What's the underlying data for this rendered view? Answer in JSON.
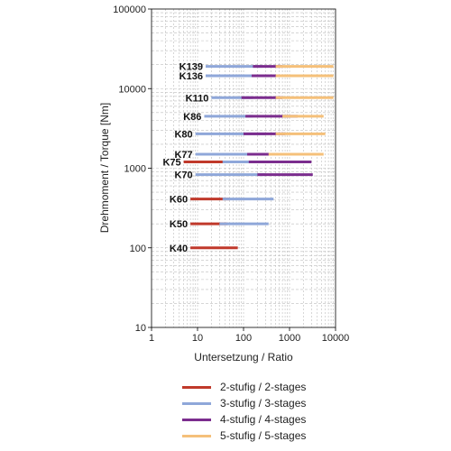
{
  "chart_data": {
    "type": "line",
    "xlabel": "Untersetzung / Ratio",
    "ylabel": "Drehmoment / Torque [Nm]",
    "x_scale": "log",
    "y_scale": "log",
    "xlim": [
      1,
      10000
    ],
    "ylim": [
      10,
      100000
    ],
    "x_ticks": [
      1,
      10,
      100,
      1000,
      10000
    ],
    "x_tick_labels": [
      "1",
      "10",
      "100",
      "1000",
      "10000"
    ],
    "y_ticks": [
      10,
      100,
      1000,
      10000,
      100000
    ],
    "y_tick_labels": [
      "10",
      "100",
      "1000",
      "10000",
      "100000"
    ],
    "grid": true,
    "legend_position": "bottom",
    "stage_colors": {
      "2-stage": "#c0392b",
      "3-stage": "#8fa7d9",
      "4-stage": "#7b2d8e",
      "5-stage": "#f5c07a"
    },
    "series": [
      {
        "name": "2-stufig / 2-stages",
        "stage": "2-stage"
      },
      {
        "name": "3-stufig / 3-stages",
        "stage": "3-stage"
      },
      {
        "name": "4-stufig / 4-stages",
        "stage": "4-stage"
      },
      {
        "name": "5-stufig / 5-stages",
        "stage": "5-stage"
      }
    ],
    "products": [
      {
        "label": "K139",
        "torque": 19000,
        "segments": [
          {
            "stage": "3-stage",
            "x": [
              15,
              260
            ]
          },
          {
            "stage": "4-stage",
            "x": [
              160,
              700
            ]
          },
          {
            "stage": "5-stage",
            "x": [
              500,
              9000
            ]
          }
        ]
      },
      {
        "label": "K136",
        "torque": 14500,
        "segments": [
          {
            "stage": "3-stage",
            "x": [
              15,
              230
            ]
          },
          {
            "stage": "4-stage",
            "x": [
              150,
              700
            ]
          },
          {
            "stage": "5-stage",
            "x": [
              500,
              9000
            ]
          }
        ]
      },
      {
        "label": "K110",
        "torque": 7700,
        "segments": [
          {
            "stage": "3-stage",
            "x": [
              20,
              160
            ]
          },
          {
            "stage": "4-stage",
            "x": [
              90,
              700
            ]
          },
          {
            "stage": "5-stage",
            "x": [
              500,
              9000
            ]
          }
        ]
      },
      {
        "label": "K86",
        "torque": 4500,
        "segments": [
          {
            "stage": "3-stage",
            "x": [
              14,
              160
            ]
          },
          {
            "stage": "4-stage",
            "x": [
              110,
              1500
            ]
          },
          {
            "stage": "5-stage",
            "x": [
              700,
              5500
            ]
          }
        ]
      },
      {
        "label": "K80",
        "torque": 2700,
        "segments": [
          {
            "stage": "3-stage",
            "x": [
              9,
              300
            ]
          },
          {
            "stage": "4-stage",
            "x": [
              100,
              800
            ]
          },
          {
            "stage": "5-stage",
            "x": [
              500,
              6000
            ]
          }
        ]
      },
      {
        "label": "K77",
        "torque": 1500,
        "segments": [
          {
            "stage": "3-stage",
            "x": [
              9,
              350
            ]
          },
          {
            "stage": "4-stage",
            "x": [
              120,
              500
            ]
          },
          {
            "stage": "5-stage",
            "x": [
              350,
              5500
            ]
          }
        ]
      },
      {
        "label": "K75",
        "torque": 1200,
        "segments": [
          {
            "stage": "2-stage",
            "x": [
              5,
              70
            ]
          },
          {
            "stage": "3-stage",
            "x": [
              35,
              300
            ]
          },
          {
            "stage": "4-stage",
            "x": [
              130,
              3000
            ]
          }
        ]
      },
      {
        "label": "K70",
        "torque": 830,
        "segments": [
          {
            "stage": "3-stage",
            "x": [
              9,
              300
            ]
          },
          {
            "stage": "4-stage",
            "x": [
              200,
              3200
            ]
          }
        ]
      },
      {
        "label": "K60",
        "torque": 410,
        "segments": [
          {
            "stage": "2-stage",
            "x": [
              7,
              50
            ]
          },
          {
            "stage": "3-stage",
            "x": [
              35,
              450
            ]
          }
        ]
      },
      {
        "label": "K50",
        "torque": 200,
        "segments": [
          {
            "stage": "2-stage",
            "x": [
              7,
              45
            ]
          },
          {
            "stage": "3-stage",
            "x": [
              30,
              350
            ]
          }
        ]
      },
      {
        "label": "K40",
        "torque": 100,
        "segments": [
          {
            "stage": "2-stage",
            "x": [
              7,
              75
            ]
          }
        ]
      }
    ]
  }
}
